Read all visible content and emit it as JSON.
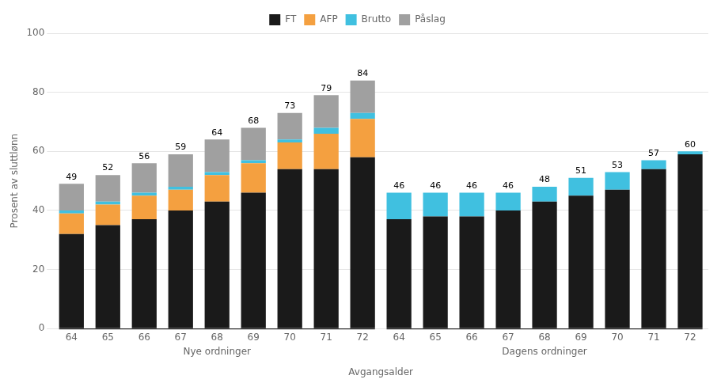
{
  "chart_data": {
    "type": "bar",
    "stacked": true,
    "ylabel": "Prosent av sluttlønn",
    "xlabel": "Avgangsalder",
    "annotations": [
      "Nye ordninger",
      "Dagens ordninger"
    ],
    "categories": [
      "64",
      "65",
      "66",
      "67",
      "68",
      "69",
      "70",
      "71",
      "72",
      "64",
      "65",
      "66",
      "67",
      "68",
      "69",
      "70",
      "71",
      "72"
    ],
    "series": [
      {
        "name": "FT",
        "color": "#1a1a1a",
        "values": [
          32,
          35,
          37,
          40,
          43,
          46,
          54,
          54,
          58,
          37,
          38,
          38,
          40,
          43,
          45,
          47,
          54,
          59
        ]
      },
      {
        "name": "AFP",
        "color": "#f4a040",
        "values": [
          7,
          7,
          8,
          7,
          9,
          10,
          9,
          12,
          13,
          0,
          0,
          0,
          0,
          0,
          0,
          0,
          0,
          0
        ]
      },
      {
        "name": "Brutto",
        "color": "#40c0e0",
        "values": [
          1,
          1,
          1,
          1,
          1,
          1,
          1,
          2,
          2,
          9,
          8,
          8,
          6,
          5,
          6,
          6,
          3,
          1
        ]
      },
      {
        "name": "Påslag",
        "color": "#a0a0a0",
        "values": [
          9,
          9,
          10,
          11,
          11,
          11,
          9,
          11,
          11,
          0,
          0,
          0,
          0,
          0,
          0,
          0,
          0,
          0
        ]
      }
    ],
    "totals": [
      49,
      52,
      56,
      59,
      64,
      68,
      73,
      79,
      84,
      46,
      46,
      46,
      46,
      48,
      51,
      53,
      57,
      60
    ],
    "data_labels": true,
    "ylim": [
      0,
      100
    ],
    "yticks": [
      0,
      20,
      40,
      60,
      80,
      100
    ],
    "grid": true,
    "legend": "top"
  }
}
